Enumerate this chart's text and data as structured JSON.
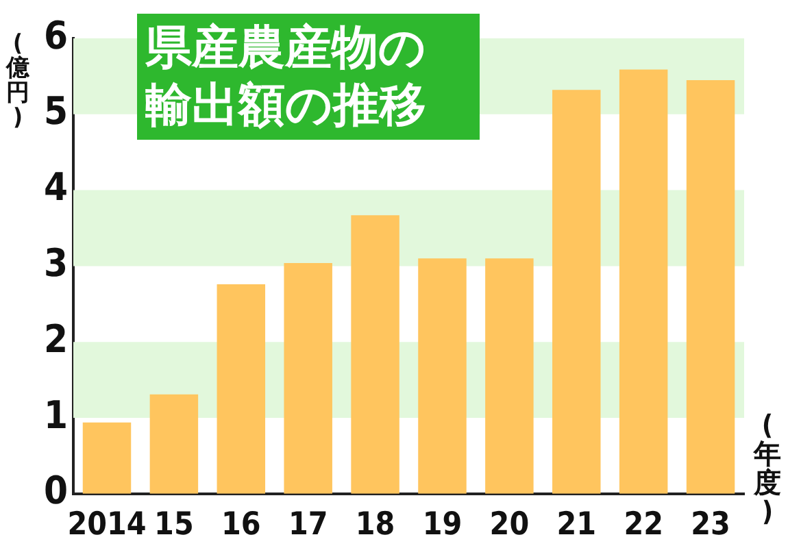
{
  "chart_data": {
    "type": "bar",
    "title": "県産農産物の輸出額の推移",
    "ylabel": "(億円)",
    "xlabel": "(年度)",
    "categories": [
      "2014",
      "15",
      "16",
      "17",
      "18",
      "19",
      "20",
      "21",
      "22",
      "23"
    ],
    "values": [
      0.94,
      1.31,
      2.76,
      3.04,
      3.67,
      3.1,
      3.1,
      5.32,
      5.59,
      5.45
    ],
    "color": "#ffc55e",
    "ylim": [
      0,
      6
    ],
    "yticks": [
      0,
      1,
      2,
      3,
      4,
      5,
      6
    ],
    "bands": [
      {
        "axis": "y",
        "from": 1,
        "to": 2,
        "color": "#e2f8dc"
      },
      {
        "axis": "y",
        "from": 3,
        "to": 4,
        "color": "#e2f8dc"
      },
      {
        "axis": "y",
        "from": 5,
        "to": 6,
        "color": "#e2f8dc"
      }
    ]
  }
}
